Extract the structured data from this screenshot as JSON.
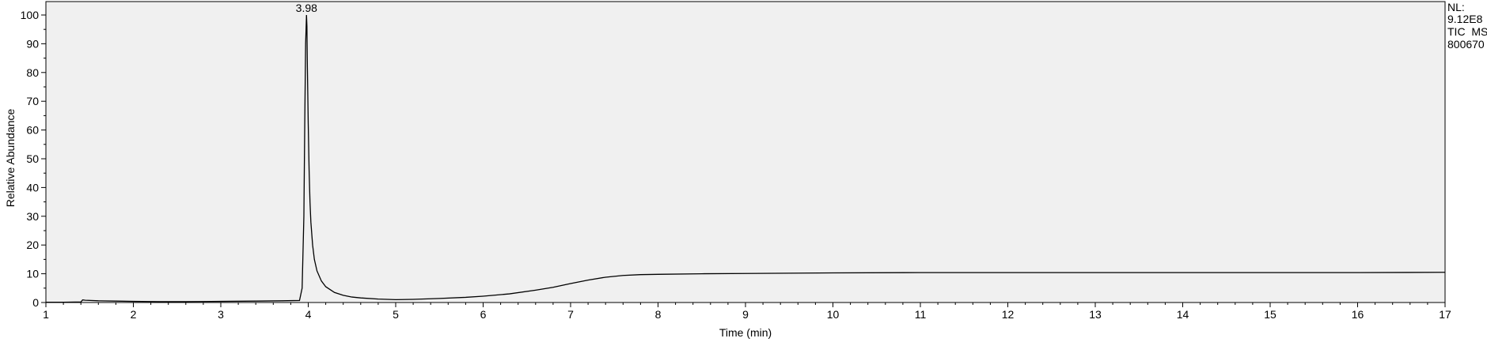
{
  "chart_data": {
    "type": "line",
    "title": "",
    "xlabel": "Time (min)",
    "ylabel": "Relative Abundance",
    "xlim": [
      1,
      17
    ],
    "ylim": [
      0,
      100
    ],
    "x_ticks": [
      1,
      2,
      3,
      4,
      5,
      6,
      7,
      8,
      9,
      10,
      11,
      12,
      13,
      14,
      15,
      16,
      17
    ],
    "y_ticks": [
      0,
      10,
      20,
      30,
      40,
      50,
      60,
      70,
      80,
      90,
      100
    ],
    "grid": false,
    "background_color": "#f0f0f0",
    "line_color": "#000000",
    "annotations": [
      {
        "x": 3.98,
        "y": 100,
        "text": "3.98"
      }
    ],
    "info_lines": [
      "NL:",
      "9.12E8",
      "TIC  MS",
      "800670"
    ],
    "series": [
      {
        "x": [
          1.0,
          1.2,
          1.4,
          1.42,
          1.45,
          1.6,
          1.8,
          2.0,
          2.3,
          2.6,
          3.0,
          3.4,
          3.7,
          3.9,
          3.93,
          3.95,
          3.96,
          3.97,
          3.98,
          3.985,
          3.99,
          4.0,
          4.01,
          4.02,
          4.03,
          4.05,
          4.07,
          4.1,
          4.15,
          4.2,
          4.3,
          4.4,
          4.5,
          4.6,
          4.8,
          5.0,
          5.2,
          5.5,
          5.8,
          6.0,
          6.3,
          6.6,
          6.8,
          7.0,
          7.2,
          7.4,
          7.6,
          7.8,
          8.0,
          8.5,
          9.0,
          10.0,
          11.0,
          12.0,
          13.0,
          14.0,
          15.0,
          16.0,
          17.0
        ],
        "y": [
          0.1,
          0.1,
          0.2,
          0.9,
          0.8,
          0.6,
          0.5,
          0.4,
          0.3,
          0.3,
          0.4,
          0.5,
          0.6,
          0.7,
          5.0,
          30.0,
          62.0,
          90.0,
          100.0,
          96.0,
          82.0,
          62.0,
          46.0,
          35.0,
          28.0,
          20.0,
          15.0,
          11.0,
          7.5,
          5.5,
          3.5,
          2.5,
          1.9,
          1.6,
          1.2,
          1.0,
          1.1,
          1.4,
          1.8,
          2.2,
          3.0,
          4.3,
          5.3,
          6.6,
          7.8,
          8.8,
          9.4,
          9.7,
          9.8,
          10.0,
          10.1,
          10.3,
          10.4,
          10.4,
          10.4,
          10.4,
          10.4,
          10.4,
          10.5
        ]
      }
    ]
  }
}
